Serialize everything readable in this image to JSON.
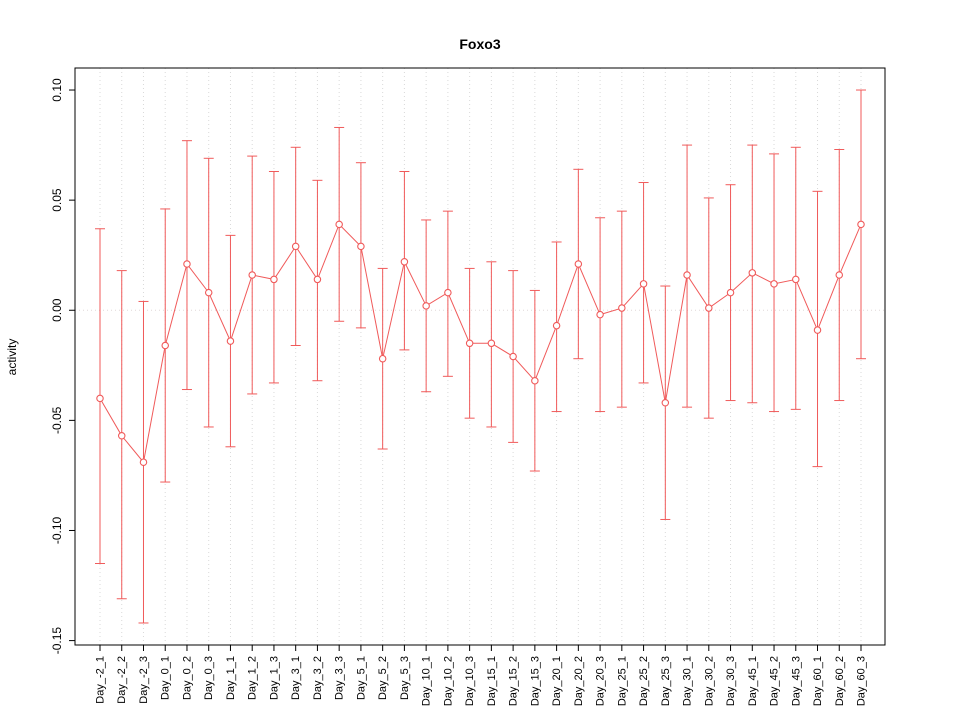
{
  "chart_data": {
    "type": "line",
    "title": "Foxo3",
    "xlabel": "",
    "ylabel": "activity",
    "ylim": [
      -0.15,
      0.1
    ],
    "grid": "dotted vertical gridline per category; dotted horizontal line at y=0",
    "legend_position": "none",
    "series_color": "#F05A5A",
    "grid_color": "#D9D9D9",
    "zero_line_color": "#E0D8D8",
    "yticks": [
      0.1,
      0.05,
      0.0,
      -0.05,
      -0.1,
      -0.15
    ],
    "ytick_labels": [
      "0.10",
      "0.05",
      "0.00",
      "-0.05",
      "-0.10",
      "-0.15"
    ],
    "categories": [
      "Day_-2_1",
      "Day_-2_2",
      "Day_-2_3",
      "Day_0_1",
      "Day_0_2",
      "Day_0_3",
      "Day_1_1",
      "Day_1_2",
      "Day_1_3",
      "Day_3_1",
      "Day_3_2",
      "Day_3_3",
      "Day_5_1",
      "Day_5_2",
      "Day_5_3",
      "Day_10_1",
      "Day_10_2",
      "Day_10_3",
      "Day_15_1",
      "Day_15_2",
      "Day_15_3",
      "Day_20_1",
      "Day_20_2",
      "Day_20_3",
      "Day_25_1",
      "Day_25_2",
      "Day_25_3",
      "Day_30_1",
      "Day_30_2",
      "Day_30_3",
      "Day_45_1",
      "Day_45_2",
      "Day_45_3",
      "Day_60_1",
      "Day_60_2",
      "Day_60_3"
    ],
    "values": [
      -0.04,
      -0.057,
      -0.069,
      -0.016,
      0.021,
      0.008,
      -0.014,
      0.016,
      0.014,
      0.029,
      0.014,
      0.039,
      0.029,
      -0.022,
      0.022,
      0.002,
      0.008,
      -0.015,
      -0.015,
      -0.021,
      -0.032,
      -0.007,
      0.021,
      -0.002,
      0.001,
      0.012,
      -0.042,
      0.016,
      0.001,
      0.008,
      0.017,
      0.012,
      0.014,
      -0.009,
      0.016,
      0.039
    ],
    "upper": [
      0.037,
      0.018,
      0.004,
      0.046,
      0.077,
      0.069,
      0.034,
      0.07,
      0.063,
      0.074,
      0.059,
      0.083,
      0.067,
      0.019,
      0.063,
      0.041,
      0.045,
      0.019,
      0.022,
      0.018,
      0.009,
      0.031,
      0.064,
      0.042,
      0.045,
      0.058,
      0.011,
      0.075,
      0.051,
      0.057,
      0.075,
      0.071,
      0.074,
      0.054,
      0.073,
      0.1
    ],
    "lower": [
      -0.115,
      -0.131,
      -0.142,
      -0.078,
      -0.036,
      -0.053,
      -0.062,
      -0.038,
      -0.033,
      -0.016,
      -0.032,
      -0.005,
      -0.008,
      -0.063,
      -0.018,
      -0.037,
      -0.03,
      -0.049,
      -0.053,
      -0.06,
      -0.073,
      -0.046,
      -0.022,
      -0.046,
      -0.044,
      -0.033,
      -0.095,
      -0.044,
      -0.049,
      -0.041,
      -0.042,
      -0.046,
      -0.045,
      -0.071,
      -0.041,
      -0.022
    ]
  }
}
